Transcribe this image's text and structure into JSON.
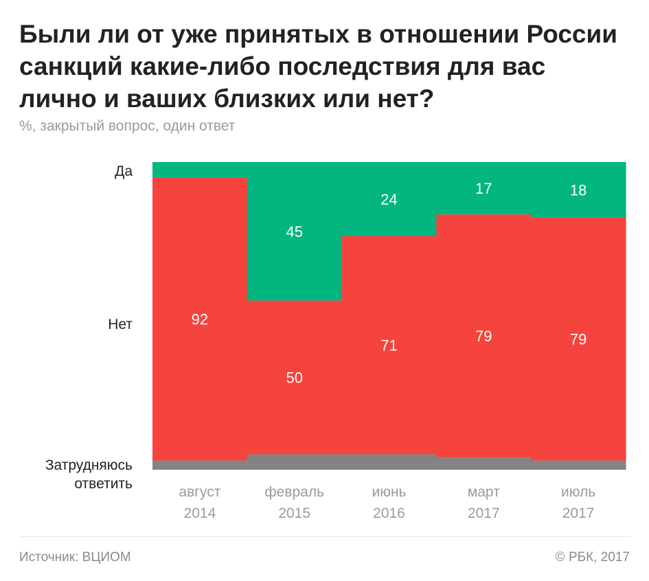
{
  "title_lines": [
    "Были ли от уже принятых в отношении России",
    "санкций какие-либо последствия для вас",
    "лично и ваших близких или нет?"
  ],
  "subtitle": "%, закрытый вопрос, один ответ",
  "chart_data": {
    "type": "bar",
    "stacked": true,
    "normalized_to": 100,
    "categories": [
      [
        "август",
        "2014"
      ],
      [
        "февраль",
        "2015"
      ],
      [
        "июнь",
        "2016"
      ],
      [
        "март",
        "2017"
      ],
      [
        "июль",
        "2017"
      ]
    ],
    "series": [
      {
        "name": "Затрудняюсь ответить",
        "color": "#838383",
        "values": [
          3,
          5,
          5,
          4,
          3
        ],
        "show_labels": false
      },
      {
        "name": "Нет",
        "color": "#f5443d",
        "values": [
          92,
          50,
          71,
          79,
          79
        ],
        "show_labels": true
      },
      {
        "name": "Да",
        "color": "#03b57f",
        "values": [
          5,
          45,
          24,
          17,
          18
        ],
        "show_labels": [
          false,
          true,
          true,
          true,
          true
        ]
      }
    ],
    "ylim": [
      0,
      100
    ],
    "grid": false,
    "legend": "left"
  },
  "series_labels": {
    "yes": "Да",
    "no": "Нет",
    "dk": "Затрудняюсь ответить"
  },
  "footer": {
    "source": "Источник: ВЦИОМ",
    "copyright": "© РБК, 2017"
  }
}
